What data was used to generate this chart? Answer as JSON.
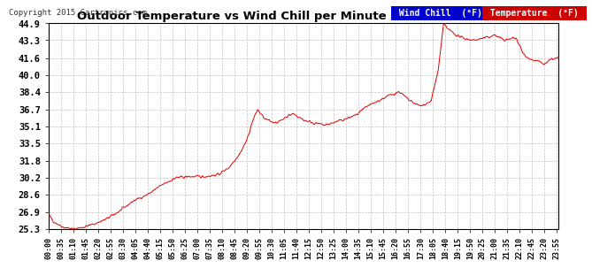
{
  "title": "Outdoor Temperature vs Wind Chill per Minute (24 Hours) 20150329",
  "copyright": "Copyright 2015 Cartronics.com",
  "bg_color": "#ffffff",
  "plot_bg_color": "#ffffff",
  "grid_color": "#bbbbbb",
  "line_color": "#dd0000",
  "yticks": [
    25.3,
    26.9,
    28.6,
    30.2,
    31.8,
    33.5,
    35.1,
    36.7,
    38.4,
    40.0,
    41.6,
    43.3,
    44.9
  ],
  "ymin": 25.3,
  "ymax": 44.9,
  "legend_wind_chill_bg": "#0000cc",
  "legend_wind_chill_label": "Wind Chill  (°F)",
  "legend_temp_bg": "#cc0000",
  "legend_temp_label": "Temperature  (°F)",
  "tick_interval_min": 35,
  "curve_xp": [
    0,
    15,
    40,
    70,
    100,
    130,
    160,
    200,
    240,
    280,
    320,
    360,
    400,
    440,
    480,
    510,
    540,
    560,
    575,
    590,
    610,
    630,
    650,
    670,
    690,
    720,
    750,
    780,
    810,
    840,
    870,
    900,
    930,
    960,
    990,
    1020,
    1050,
    1080,
    1100,
    1115,
    1130,
    1150,
    1170,
    1200,
    1230,
    1260,
    1275,
    1290,
    1310,
    1320,
    1340,
    1360,
    1380,
    1400,
    1420,
    1439
  ],
  "curve_yp": [
    26.7,
    26.0,
    25.5,
    25.3,
    25.5,
    25.8,
    26.2,
    27.0,
    28.0,
    28.6,
    29.5,
    30.2,
    30.3,
    30.3,
    30.5,
    31.2,
    32.5,
    33.8,
    35.5,
    36.7,
    35.8,
    35.5,
    35.5,
    36.0,
    36.3,
    35.7,
    35.4,
    35.2,
    35.5,
    35.8,
    36.2,
    37.0,
    37.5,
    38.0,
    38.4,
    37.5,
    37.0,
    37.5,
    40.5,
    44.8,
    44.3,
    43.8,
    43.5,
    43.3,
    43.5,
    43.8,
    43.5,
    43.3,
    43.5,
    43.5,
    42.0,
    41.5,
    41.3,
    41.0,
    41.5,
    41.6
  ]
}
